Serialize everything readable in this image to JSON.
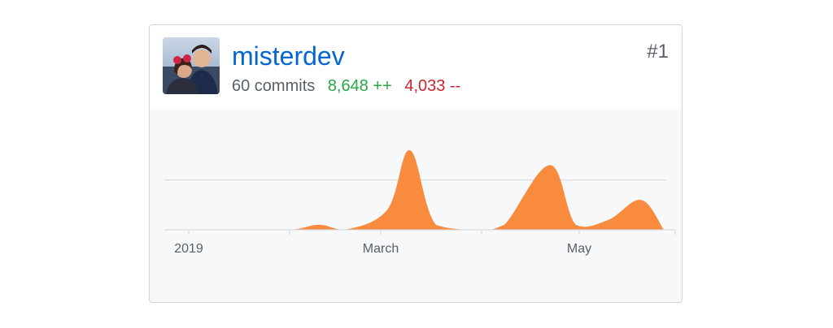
{
  "contributor": {
    "username": "misterdev",
    "commits": "60 commits",
    "additions": "8,648 ++",
    "deletions": "4,033 --",
    "rank": "#1"
  },
  "colors": {
    "link": "#0366d6",
    "additions": "#28a745",
    "deletions": "#cb2431",
    "area_fill": "#f98b3f",
    "background": "#f6f8fa"
  },
  "chart_data": {
    "type": "area",
    "title": "",
    "xlabel": "",
    "ylabel": "",
    "x": [
      "2019-01-01",
      "2019-01-15",
      "2019-02-01",
      "2019-02-10",
      "2019-02-18",
      "2019-03-03",
      "2019-03-10",
      "2019-03-18",
      "2019-04-01",
      "2019-04-08",
      "2019-04-22",
      "2019-04-30",
      "2019-05-10",
      "2019-05-20",
      "2019-05-27"
    ],
    "values": [
      0,
      0,
      0,
      1,
      0,
      4,
      16,
      1,
      0,
      1,
      13,
      1,
      2,
      6,
      0
    ],
    "ylim": [
      0,
      16
    ],
    "x_tick_labels": [
      "2019",
      "March",
      "May"
    ],
    "grid": "horizontal"
  }
}
